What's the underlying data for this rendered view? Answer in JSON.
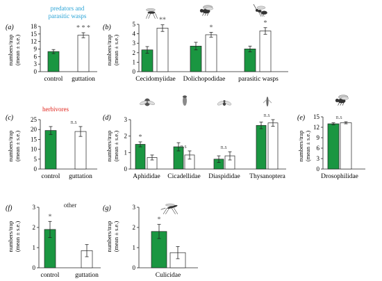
{
  "colors": {
    "green": "#1a9641",
    "white": "#ffffff",
    "outline": "#222222",
    "predator_heading": "#29a3d6",
    "herbivore_heading": "#e0231b"
  },
  "ylabel_line1": "numbers/trap",
  "ylabel_line2": "(mean ± s.e.)",
  "group_headings": {
    "predators": "predators and\nparasitic wasps",
    "herbivores": "herbivores",
    "other": "other"
  },
  "chart_data": [
    {
      "id": "a",
      "label": "(a)",
      "type": "bar",
      "ylim": [
        0,
        18
      ],
      "yticks": [
        0,
        3,
        6,
        9,
        12,
        15,
        18
      ],
      "categories": [
        "control",
        "guttation"
      ],
      "bars": [
        {
          "value": 8.0,
          "err": 0.8,
          "fill": "green"
        },
        {
          "value": 14.5,
          "err": 1.0,
          "fill": "white",
          "sig": "* * *"
        }
      ]
    },
    {
      "id": "b",
      "label": "(b)",
      "type": "bar",
      "ylim": [
        0,
        5
      ],
      "yticks": [
        0,
        1,
        2,
        3,
        4,
        5
      ],
      "categories": [
        "Cecidomyiidae",
        "Dolichopodidae",
        "parasitic wasps"
      ],
      "bars": [
        {
          "value": 2.3,
          "err": 0.35,
          "fill": "green"
        },
        {
          "value": 4.6,
          "err": 0.35,
          "fill": "white",
          "sig": "**"
        },
        {
          "value": 2.7,
          "err": 0.4,
          "fill": "green"
        },
        {
          "value": 3.9,
          "err": 0.25,
          "fill": "white",
          "sig": "*"
        },
        {
          "value": 2.4,
          "err": 0.3,
          "fill": "green"
        },
        {
          "value": 4.3,
          "err": 0.35,
          "fill": "white",
          "sig": "*"
        }
      ]
    },
    {
      "id": "c",
      "label": "(c)",
      "type": "bar",
      "ylim": [
        0,
        25
      ],
      "yticks": [
        0,
        5,
        10,
        15,
        20,
        25
      ],
      "categories": [
        "control",
        "guttation"
      ],
      "bars": [
        {
          "value": 19.5,
          "err": 2.0,
          "fill": "green"
        },
        {
          "value": 19.0,
          "err": 2.5,
          "fill": "white",
          "sig": "n.s"
        }
      ]
    },
    {
      "id": "d",
      "label": "(d)",
      "type": "bar",
      "ylim": [
        0,
        3
      ],
      "yticks": [
        0,
        1,
        2,
        3
      ],
      "categories": [
        "Aphididae",
        "Cicadellidae",
        "Diaspididae",
        "Thysanoptera"
      ],
      "bars": [
        {
          "value": 1.5,
          "err": 0.15,
          "fill": "green",
          "sig": "*"
        },
        {
          "value": 0.7,
          "err": 0.15,
          "fill": "white"
        },
        {
          "value": 1.35,
          "err": 0.25,
          "fill": "green"
        },
        {
          "value": 0.85,
          "err": 0.25,
          "fill": "white",
          "sig": "n.s"
        },
        {
          "value": 0.6,
          "err": 0.2,
          "fill": "green"
        },
        {
          "value": 0.8,
          "err": 0.25,
          "fill": "white",
          "sig": "n.s"
        },
        {
          "value": 2.65,
          "err": 0.2,
          "fill": "green"
        },
        {
          "value": 2.8,
          "err": 0.2,
          "fill": "white",
          "sig": "n.s"
        }
      ]
    },
    {
      "id": "e",
      "label": "(e)",
      "type": "bar",
      "ylim": [
        0,
        15
      ],
      "yticks": [
        0,
        3,
        6,
        9,
        12,
        15
      ],
      "categories": [
        "Drosophilidae"
      ],
      "bars": [
        {
          "value": 13.0,
          "err": 0.3,
          "fill": "green"
        },
        {
          "value": 13.3,
          "err": 0.3,
          "fill": "white",
          "sig": "n.s"
        }
      ]
    },
    {
      "id": "f",
      "label": "(f)",
      "type": "bar",
      "ylim": [
        0,
        3
      ],
      "yticks": [
        0,
        1,
        2,
        3
      ],
      "categories": [
        "control",
        "guttation"
      ],
      "bars": [
        {
          "value": 1.9,
          "err": 0.4,
          "fill": "green",
          "sig": "*"
        },
        {
          "value": 0.85,
          "err": 0.3,
          "fill": "white"
        }
      ]
    },
    {
      "id": "g",
      "label": "(g)",
      "type": "bar",
      "ylim": [
        0,
        3
      ],
      "yticks": [
        0,
        1,
        2,
        3
      ],
      "categories": [
        "Culicidae"
      ],
      "bars": [
        {
          "value": 1.8,
          "err": 0.35,
          "fill": "green",
          "sig": "*"
        },
        {
          "value": 0.75,
          "err": 0.3,
          "fill": "white"
        }
      ]
    }
  ]
}
